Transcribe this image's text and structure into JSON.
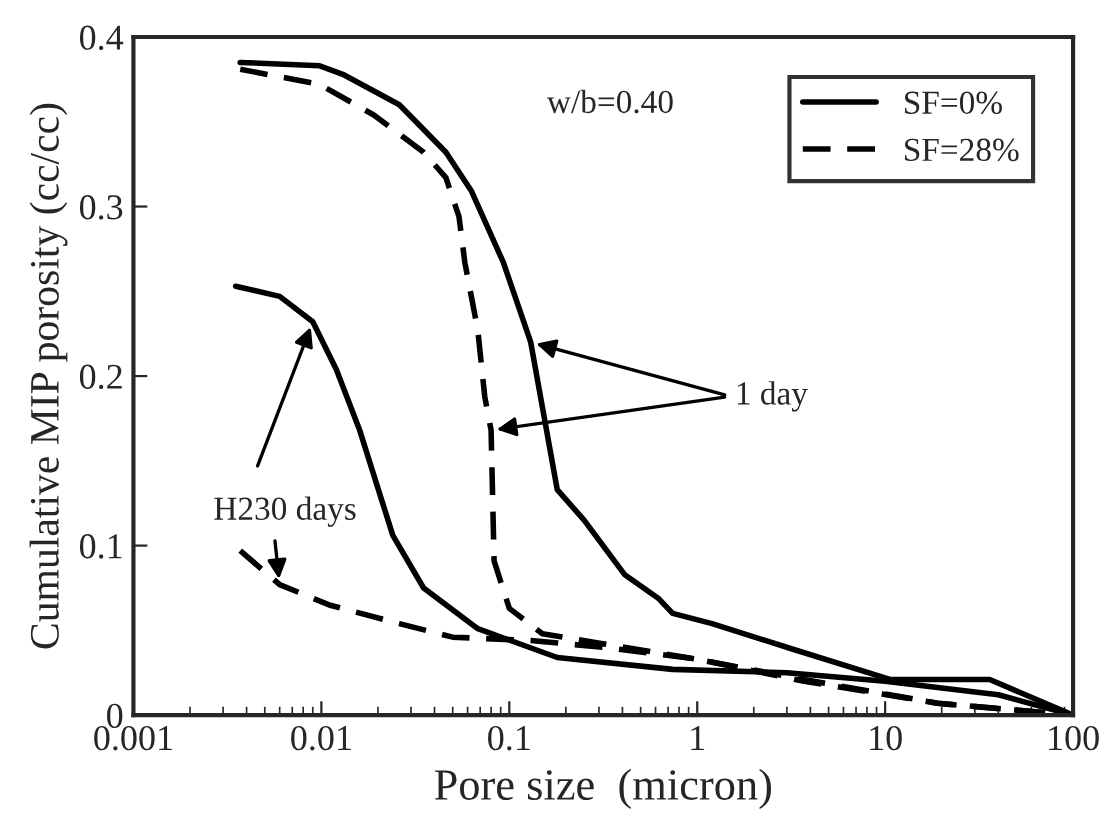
{
  "chart_data": {
    "type": "line",
    "xlabel": "Pore size  (micron)",
    "ylabel": "Cumulative MIP porosity (cc/cc)",
    "log": "x",
    "xlim": [
      0.001,
      100
    ],
    "xticks": [
      {
        "value": 0.001,
        "label": "0.001"
      },
      {
        "value": 0.01,
        "label": "0.01"
      },
      {
        "value": 0.1,
        "label": "0.1"
      },
      {
        "value": 1,
        "label": "1"
      },
      {
        "value": 10,
        "label": "10"
      },
      {
        "value": 100,
        "label": "100"
      }
    ],
    "ylim": [
      0,
      0.4
    ],
    "yticks": [
      0,
      0.1,
      0.2,
      0.3,
      0.4
    ],
    "grid": false,
    "legend": "top right",
    "series": [
      {
        "name": "SF=0%",
        "color": "#000000",
        "line_style": "solid",
        "x": [
          0.0037,
          0.0098,
          0.013,
          0.026,
          0.046,
          0.063,
          0.093,
          0.13,
          0.18,
          0.25,
          0.41,
          0.62,
          0.74,
          1.2,
          3.2,
          10.7,
          36,
          100
        ],
        "values": [
          0.385,
          0.383,
          0.378,
          0.36,
          0.332,
          0.309,
          0.267,
          0.22,
          0.133,
          0.115,
          0.083,
          0.069,
          0.06,
          0.054,
          0.039,
          0.021,
          0.021,
          0
        ]
      },
      {
        "name": "SF=28%",
        "color": "#000000",
        "line_style": "dashed",
        "x": [
          0.0037,
          0.0098,
          0.019,
          0.035,
          0.046,
          0.054,
          0.058,
          0.068,
          0.074,
          0.08,
          0.083,
          0.1,
          0.15,
          0.32,
          1.0,
          3.7,
          19,
          100
        ],
        "values": [
          0.381,
          0.372,
          0.354,
          0.332,
          0.317,
          0.294,
          0.267,
          0.227,
          0.188,
          0.168,
          0.091,
          0.063,
          0.048,
          0.042,
          0.033,
          0.021,
          0.007,
          0
        ]
      },
      {
        "color": "#000000",
        "line_style": "solid",
        "x": [
          0.0035,
          0.006,
          0.009,
          0.012,
          0.016,
          0.024,
          0.035,
          0.068,
          0.18,
          0.74,
          3,
          10,
          40,
          100
        ],
        "values": [
          0.253,
          0.247,
          0.232,
          0.204,
          0.168,
          0.106,
          0.075,
          0.051,
          0.034,
          0.027,
          0.025,
          0.02,
          0.012,
          0
        ]
      },
      {
        "color": "#000000",
        "line_style": "dashed",
        "x": [
          0.0037,
          0.006,
          0.011,
          0.026,
          0.05,
          0.13,
          0.32,
          1.0,
          3.7,
          19,
          100
        ],
        "values": [
          0.097,
          0.077,
          0.065,
          0.054,
          0.046,
          0.044,
          0.04,
          0.033,
          0.02,
          0.007,
          0
        ]
      }
    ],
    "annotations": [
      "w/b=0.40",
      {
        "text": "1 day",
        "x": 0.13,
        "y": 0.22
      },
      {
        "text": "H230 days",
        "x": 0.009,
        "y": 0.232
      }
    ]
  }
}
